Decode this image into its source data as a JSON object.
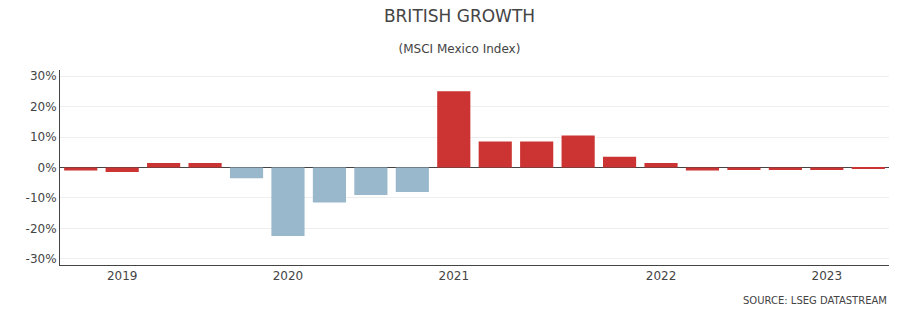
{
  "chart_data": {
    "type": "bar",
    "title": "BRITISH GROWTH",
    "subtitle": "(MSCI Mexico Index)",
    "annotations": [
      "SOURCE: LSEG DATASTREAM"
    ],
    "categories": [
      null,
      "2019",
      null,
      null,
      null,
      "2020",
      null,
      null,
      null,
      "2021",
      null,
      null,
      null,
      null,
      "2022",
      null,
      null,
      null,
      "2023",
      null
    ],
    "values": [
      -1.0,
      -1.5,
      1.5,
      1.5,
      -3.5,
      -22.5,
      -11.5,
      -9.0,
      -8.0,
      25.0,
      8.5,
      8.5,
      10.5,
      3.5,
      1.5,
      -1.0,
      -0.8,
      -0.8,
      -0.8,
      -0.5
    ],
    "colors": [
      "#cc3333",
      "#cc3333",
      "#cc3333",
      "#cc3333",
      "#9ab8cc",
      "#9ab8cc",
      "#9ab8cc",
      "#9ab8cc",
      "#9ab8cc",
      "#cc3333",
      "#cc3333",
      "#cc3333",
      "#cc3333",
      "#cc3333",
      "#cc3333",
      "#cc3333",
      "#cc3333",
      "#cc3333",
      "#cc3333",
      "#cc3333"
    ],
    "ylim": [
      -32,
      32
    ],
    "yticks": [
      {
        "value": -30,
        "label": "-30%"
      },
      {
        "value": -20,
        "label": "-20%"
      },
      {
        "value": -10,
        "label": "-10%"
      },
      {
        "value": 0,
        "label": "0%"
      },
      {
        "value": 10,
        "label": "10%"
      },
      {
        "value": 20,
        "label": "20%"
      },
      {
        "value": 30,
        "label": "30%"
      }
    ],
    "grid": true
  }
}
